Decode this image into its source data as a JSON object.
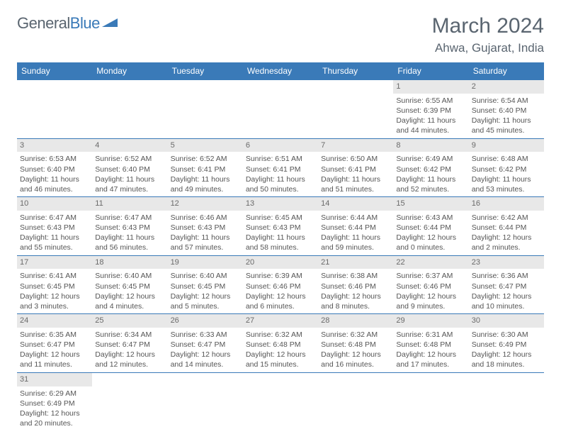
{
  "logo": {
    "text1": "General",
    "text2": "Blue"
  },
  "title": "March 2024",
  "location": "Ahwa, Gujarat, India",
  "colors": {
    "header_bg": "#3a7ab8",
    "header_text": "#ffffff",
    "daynum_bg": "#e8e8e8",
    "row_divider": "#3a7ab8",
    "text_color": "#555555",
    "title_color": "#5a6570"
  },
  "weekdays": [
    "Sunday",
    "Monday",
    "Tuesday",
    "Wednesday",
    "Thursday",
    "Friday",
    "Saturday"
  ],
  "cells": [
    {
      "row": 0,
      "col": 0,
      "empty": true
    },
    {
      "row": 0,
      "col": 1,
      "empty": true
    },
    {
      "row": 0,
      "col": 2,
      "empty": true
    },
    {
      "row": 0,
      "col": 3,
      "empty": true
    },
    {
      "row": 0,
      "col": 4,
      "empty": true
    },
    {
      "row": 0,
      "col": 5,
      "day": "1",
      "sunrise": "Sunrise: 6:55 AM",
      "sunset": "Sunset: 6:39 PM",
      "daylight1": "Daylight: 11 hours",
      "daylight2": "and 44 minutes."
    },
    {
      "row": 0,
      "col": 6,
      "day": "2",
      "sunrise": "Sunrise: 6:54 AM",
      "sunset": "Sunset: 6:40 PM",
      "daylight1": "Daylight: 11 hours",
      "daylight2": "and 45 minutes."
    },
    {
      "row": 1,
      "col": 0,
      "day": "3",
      "sunrise": "Sunrise: 6:53 AM",
      "sunset": "Sunset: 6:40 PM",
      "daylight1": "Daylight: 11 hours",
      "daylight2": "and 46 minutes."
    },
    {
      "row": 1,
      "col": 1,
      "day": "4",
      "sunrise": "Sunrise: 6:52 AM",
      "sunset": "Sunset: 6:40 PM",
      "daylight1": "Daylight: 11 hours",
      "daylight2": "and 47 minutes."
    },
    {
      "row": 1,
      "col": 2,
      "day": "5",
      "sunrise": "Sunrise: 6:52 AM",
      "sunset": "Sunset: 6:41 PM",
      "daylight1": "Daylight: 11 hours",
      "daylight2": "and 49 minutes."
    },
    {
      "row": 1,
      "col": 3,
      "day": "6",
      "sunrise": "Sunrise: 6:51 AM",
      "sunset": "Sunset: 6:41 PM",
      "daylight1": "Daylight: 11 hours",
      "daylight2": "and 50 minutes."
    },
    {
      "row": 1,
      "col": 4,
      "day": "7",
      "sunrise": "Sunrise: 6:50 AM",
      "sunset": "Sunset: 6:41 PM",
      "daylight1": "Daylight: 11 hours",
      "daylight2": "and 51 minutes."
    },
    {
      "row": 1,
      "col": 5,
      "day": "8",
      "sunrise": "Sunrise: 6:49 AM",
      "sunset": "Sunset: 6:42 PM",
      "daylight1": "Daylight: 11 hours",
      "daylight2": "and 52 minutes."
    },
    {
      "row": 1,
      "col": 6,
      "day": "9",
      "sunrise": "Sunrise: 6:48 AM",
      "sunset": "Sunset: 6:42 PM",
      "daylight1": "Daylight: 11 hours",
      "daylight2": "and 53 minutes."
    },
    {
      "row": 2,
      "col": 0,
      "day": "10",
      "sunrise": "Sunrise: 6:47 AM",
      "sunset": "Sunset: 6:43 PM",
      "daylight1": "Daylight: 11 hours",
      "daylight2": "and 55 minutes."
    },
    {
      "row": 2,
      "col": 1,
      "day": "11",
      "sunrise": "Sunrise: 6:47 AM",
      "sunset": "Sunset: 6:43 PM",
      "daylight1": "Daylight: 11 hours",
      "daylight2": "and 56 minutes."
    },
    {
      "row": 2,
      "col": 2,
      "day": "12",
      "sunrise": "Sunrise: 6:46 AM",
      "sunset": "Sunset: 6:43 PM",
      "daylight1": "Daylight: 11 hours",
      "daylight2": "and 57 minutes."
    },
    {
      "row": 2,
      "col": 3,
      "day": "13",
      "sunrise": "Sunrise: 6:45 AM",
      "sunset": "Sunset: 6:43 PM",
      "daylight1": "Daylight: 11 hours",
      "daylight2": "and 58 minutes."
    },
    {
      "row": 2,
      "col": 4,
      "day": "14",
      "sunrise": "Sunrise: 6:44 AM",
      "sunset": "Sunset: 6:44 PM",
      "daylight1": "Daylight: 11 hours",
      "daylight2": "and 59 minutes."
    },
    {
      "row": 2,
      "col": 5,
      "day": "15",
      "sunrise": "Sunrise: 6:43 AM",
      "sunset": "Sunset: 6:44 PM",
      "daylight1": "Daylight: 12 hours",
      "daylight2": "and 0 minutes."
    },
    {
      "row": 2,
      "col": 6,
      "day": "16",
      "sunrise": "Sunrise: 6:42 AM",
      "sunset": "Sunset: 6:44 PM",
      "daylight1": "Daylight: 12 hours",
      "daylight2": "and 2 minutes."
    },
    {
      "row": 3,
      "col": 0,
      "day": "17",
      "sunrise": "Sunrise: 6:41 AM",
      "sunset": "Sunset: 6:45 PM",
      "daylight1": "Daylight: 12 hours",
      "daylight2": "and 3 minutes."
    },
    {
      "row": 3,
      "col": 1,
      "day": "18",
      "sunrise": "Sunrise: 6:40 AM",
      "sunset": "Sunset: 6:45 PM",
      "daylight1": "Daylight: 12 hours",
      "daylight2": "and 4 minutes."
    },
    {
      "row": 3,
      "col": 2,
      "day": "19",
      "sunrise": "Sunrise: 6:40 AM",
      "sunset": "Sunset: 6:45 PM",
      "daylight1": "Daylight: 12 hours",
      "daylight2": "and 5 minutes."
    },
    {
      "row": 3,
      "col": 3,
      "day": "20",
      "sunrise": "Sunrise: 6:39 AM",
      "sunset": "Sunset: 6:46 PM",
      "daylight1": "Daylight: 12 hours",
      "daylight2": "and 6 minutes."
    },
    {
      "row": 3,
      "col": 4,
      "day": "21",
      "sunrise": "Sunrise: 6:38 AM",
      "sunset": "Sunset: 6:46 PM",
      "daylight1": "Daylight: 12 hours",
      "daylight2": "and 8 minutes."
    },
    {
      "row": 3,
      "col": 5,
      "day": "22",
      "sunrise": "Sunrise: 6:37 AM",
      "sunset": "Sunset: 6:46 PM",
      "daylight1": "Daylight: 12 hours",
      "daylight2": "and 9 minutes."
    },
    {
      "row": 3,
      "col": 6,
      "day": "23",
      "sunrise": "Sunrise: 6:36 AM",
      "sunset": "Sunset: 6:47 PM",
      "daylight1": "Daylight: 12 hours",
      "daylight2": "and 10 minutes."
    },
    {
      "row": 4,
      "col": 0,
      "day": "24",
      "sunrise": "Sunrise: 6:35 AM",
      "sunset": "Sunset: 6:47 PM",
      "daylight1": "Daylight: 12 hours",
      "daylight2": "and 11 minutes."
    },
    {
      "row": 4,
      "col": 1,
      "day": "25",
      "sunrise": "Sunrise: 6:34 AM",
      "sunset": "Sunset: 6:47 PM",
      "daylight1": "Daylight: 12 hours",
      "daylight2": "and 12 minutes."
    },
    {
      "row": 4,
      "col": 2,
      "day": "26",
      "sunrise": "Sunrise: 6:33 AM",
      "sunset": "Sunset: 6:47 PM",
      "daylight1": "Daylight: 12 hours",
      "daylight2": "and 14 minutes."
    },
    {
      "row": 4,
      "col": 3,
      "day": "27",
      "sunrise": "Sunrise: 6:32 AM",
      "sunset": "Sunset: 6:48 PM",
      "daylight1": "Daylight: 12 hours",
      "daylight2": "and 15 minutes."
    },
    {
      "row": 4,
      "col": 4,
      "day": "28",
      "sunrise": "Sunrise: 6:32 AM",
      "sunset": "Sunset: 6:48 PM",
      "daylight1": "Daylight: 12 hours",
      "daylight2": "and 16 minutes."
    },
    {
      "row": 4,
      "col": 5,
      "day": "29",
      "sunrise": "Sunrise: 6:31 AM",
      "sunset": "Sunset: 6:48 PM",
      "daylight1": "Daylight: 12 hours",
      "daylight2": "and 17 minutes."
    },
    {
      "row": 4,
      "col": 6,
      "day": "30",
      "sunrise": "Sunrise: 6:30 AM",
      "sunset": "Sunset: 6:49 PM",
      "daylight1": "Daylight: 12 hours",
      "daylight2": "and 18 minutes."
    },
    {
      "row": 5,
      "col": 0,
      "day": "31",
      "sunrise": "Sunrise: 6:29 AM",
      "sunset": "Sunset: 6:49 PM",
      "daylight1": "Daylight: 12 hours",
      "daylight2": "and 20 minutes."
    },
    {
      "row": 5,
      "col": 1,
      "empty": true
    },
    {
      "row": 5,
      "col": 2,
      "empty": true
    },
    {
      "row": 5,
      "col": 3,
      "empty": true
    },
    {
      "row": 5,
      "col": 4,
      "empty": true
    },
    {
      "row": 5,
      "col": 5,
      "empty": true
    },
    {
      "row": 5,
      "col": 6,
      "empty": true
    }
  ]
}
